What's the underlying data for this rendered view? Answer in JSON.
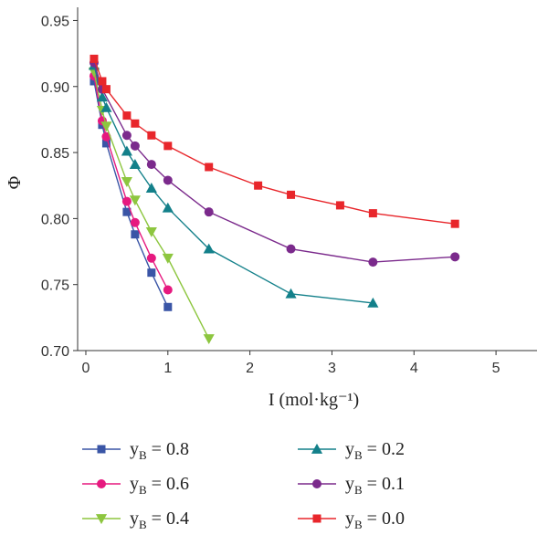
{
  "chart_data": {
    "type": "line",
    "xlabel": "I (mol·kg⁻¹)",
    "ylabel": "Φ",
    "xlim": [
      -0.1,
      5.5
    ],
    "ylim": [
      0.7,
      0.96
    ],
    "xticks": [
      "0",
      "1",
      "2",
      "3",
      "4",
      "5"
    ],
    "yticks": [
      "0.70",
      "0.75",
      "0.80",
      "0.85",
      "0.90",
      "0.95"
    ],
    "legend_placement": "bottom",
    "grid": false,
    "series": [
      {
        "label_main": "y",
        "label_sub": "B",
        "label_value": " = 0.8",
        "color": "#3a55a6",
        "marker": "square",
        "x": [
          0.1,
          0.2,
          0.25,
          0.5,
          0.6,
          0.8,
          1.0
        ],
        "y": [
          0.904,
          0.871,
          0.857,
          0.805,
          0.788,
          0.759,
          0.733
        ]
      },
      {
        "label_main": "y",
        "label_sub": "B",
        "label_value": " = 0.6",
        "color": "#e6197f",
        "marker": "circle",
        "x": [
          0.1,
          0.2,
          0.25,
          0.5,
          0.6,
          0.8,
          1.0
        ],
        "y": [
          0.908,
          0.874,
          0.862,
          0.813,
          0.797,
          0.77,
          0.746
        ]
      },
      {
        "label_main": "y",
        "label_sub": "B",
        "label_value": " = 0.4",
        "color": "#8dc63f",
        "marker": "triangle-down",
        "x": [
          0.1,
          0.2,
          0.25,
          0.5,
          0.6,
          0.8,
          1.0,
          1.5
        ],
        "y": [
          0.911,
          0.882,
          0.87,
          0.828,
          0.814,
          0.79,
          0.77,
          0.709
        ]
      },
      {
        "label_main": "y",
        "label_sub": "B",
        "label_value": " = 0.2",
        "color": "#13808a",
        "marker": "triangle-up",
        "x": [
          0.1,
          0.2,
          0.25,
          0.5,
          0.6,
          0.8,
          1.0,
          1.5,
          2.5,
          3.5
        ],
        "y": [
          0.916,
          0.892,
          0.884,
          0.851,
          0.841,
          0.823,
          0.808,
          0.777,
          0.743,
          0.736
        ]
      },
      {
        "label_main": "y",
        "label_sub": "B",
        "label_value": " = 0.1",
        "color": "#7b2a8c",
        "marker": "circle",
        "x": [
          0.1,
          0.2,
          0.5,
          0.6,
          0.8,
          1.0,
          1.5,
          2.5,
          3.5,
          4.5
        ],
        "y": [
          0.918,
          0.898,
          0.863,
          0.855,
          0.841,
          0.829,
          0.805,
          0.777,
          0.767,
          0.771
        ]
      },
      {
        "label_main": "y",
        "label_sub": "B",
        "label_value": " = 0.0",
        "color": "#e8262b",
        "marker": "square",
        "x": [
          0.1,
          0.2,
          0.25,
          0.5,
          0.6,
          0.8,
          1.0,
          1.5,
          2.1,
          2.5,
          3.1,
          3.5,
          4.5
        ],
        "y": [
          0.921,
          0.904,
          0.898,
          0.878,
          0.872,
          0.863,
          0.855,
          0.839,
          0.825,
          0.818,
          0.81,
          0.804,
          0.796
        ]
      }
    ]
  }
}
